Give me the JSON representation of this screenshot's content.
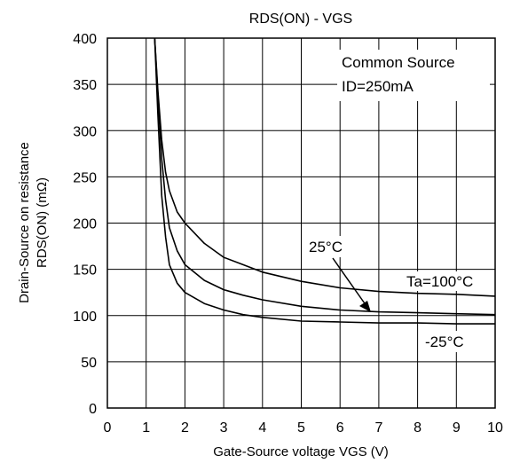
{
  "chart_data": {
    "type": "line",
    "title": "RDS(ON) - VGS",
    "xlabel": "Gate-Source voltage  VGS (V)",
    "ylabel_line1": "Drain-Source on resistance",
    "ylabel_line2": "RDS(ON) (mΩ)",
    "xlim": [
      0,
      10
    ],
    "ylim": [
      0,
      400
    ],
    "xticks": [
      0,
      1,
      2,
      3,
      4,
      5,
      6,
      7,
      8,
      9,
      10
    ],
    "yticks": [
      0,
      50,
      100,
      150,
      200,
      250,
      300,
      350,
      400
    ],
    "grid": true,
    "annotations": {
      "condition_line1": "Common Source",
      "condition_line2": "ID=250mA",
      "label_25": "25°C",
      "label_100": "Ta=100°C",
      "label_m25": "-25°C"
    },
    "series": [
      {
        "name": "Ta=100°C",
        "points": [
          [
            1.22,
            400
          ],
          [
            1.3,
            345
          ],
          [
            1.4,
            290
          ],
          [
            1.5,
            255
          ],
          [
            1.6,
            235
          ],
          [
            1.8,
            212
          ],
          [
            2.0,
            200
          ],
          [
            2.5,
            178
          ],
          [
            3.0,
            163
          ],
          [
            3.5,
            155
          ],
          [
            4.0,
            147
          ],
          [
            5.0,
            137
          ],
          [
            6.0,
            130
          ],
          [
            7.0,
            126
          ],
          [
            8.0,
            124
          ],
          [
            9.0,
            123
          ],
          [
            10.0,
            121
          ]
        ]
      },
      {
        "name": "25°C",
        "points": [
          [
            1.22,
            400
          ],
          [
            1.3,
            340
          ],
          [
            1.4,
            270
          ],
          [
            1.5,
            225
          ],
          [
            1.6,
            195
          ],
          [
            1.8,
            170
          ],
          [
            2.0,
            155
          ],
          [
            2.5,
            138
          ],
          [
            3.0,
            128
          ],
          [
            3.5,
            122
          ],
          [
            4.0,
            117
          ],
          [
            5.0,
            110
          ],
          [
            6.0,
            106
          ],
          [
            7.0,
            104
          ],
          [
            8.0,
            103
          ],
          [
            9.0,
            102
          ],
          [
            10.0,
            101
          ]
        ]
      },
      {
        "name": "-25°C",
        "points": [
          [
            1.22,
            400
          ],
          [
            1.3,
            320
          ],
          [
            1.4,
            230
          ],
          [
            1.5,
            185
          ],
          [
            1.6,
            155
          ],
          [
            1.8,
            135
          ],
          [
            2.0,
            125
          ],
          [
            2.5,
            113
          ],
          [
            3.0,
            106
          ],
          [
            3.5,
            101
          ],
          [
            4.0,
            98
          ],
          [
            5.0,
            94
          ],
          [
            6.0,
            93
          ],
          [
            7.0,
            92
          ],
          [
            8.0,
            92
          ],
          [
            9.0,
            91
          ],
          [
            10.0,
            91
          ]
        ]
      }
    ]
  }
}
